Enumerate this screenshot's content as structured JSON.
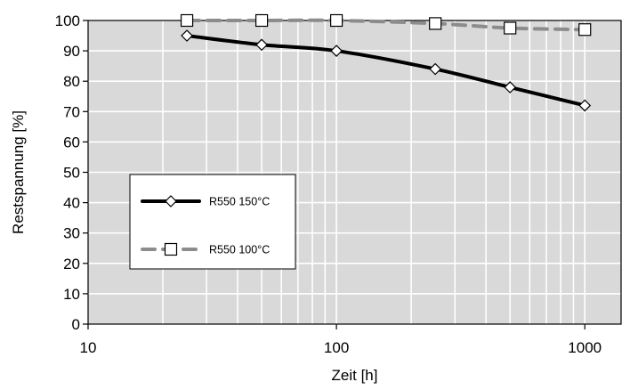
{
  "chart_data": {
    "type": "line",
    "xlabel": "Zeit [h]",
    "ylabel": "Restspannung [%]",
    "x_scale": "log",
    "xlim": [
      10,
      1400
    ],
    "ylim": [
      0,
      100
    ],
    "x_ticks": [
      10,
      100,
      1000
    ],
    "x_tick_labels": [
      "10",
      "100",
      "1000"
    ],
    "y_ticks": [
      0,
      10,
      20,
      30,
      40,
      50,
      60,
      70,
      80,
      90,
      100
    ],
    "y_tick_labels": [
      "0",
      "10",
      "20",
      "30",
      "40",
      "50",
      "60",
      "70",
      "80",
      "90",
      "100"
    ],
    "grid": true,
    "plot_background": "#d9d9d9",
    "legend_position": "left-middle",
    "series": [
      {
        "name": "R550 150°C",
        "color": "#000000",
        "line_style": "solid",
        "marker": "diamond",
        "x": [
          25,
          50,
          100,
          250,
          500,
          1000
        ],
        "y": [
          95,
          92,
          90,
          84,
          78,
          72
        ]
      },
      {
        "name": "R550 100°C",
        "color": "#8c8c8c",
        "line_style": "dashed",
        "marker": "square",
        "x": [
          25,
          50,
          100,
          250,
          500,
          1000
        ],
        "y": [
          100,
          100,
          100,
          99,
          97.5,
          97
        ]
      }
    ]
  }
}
